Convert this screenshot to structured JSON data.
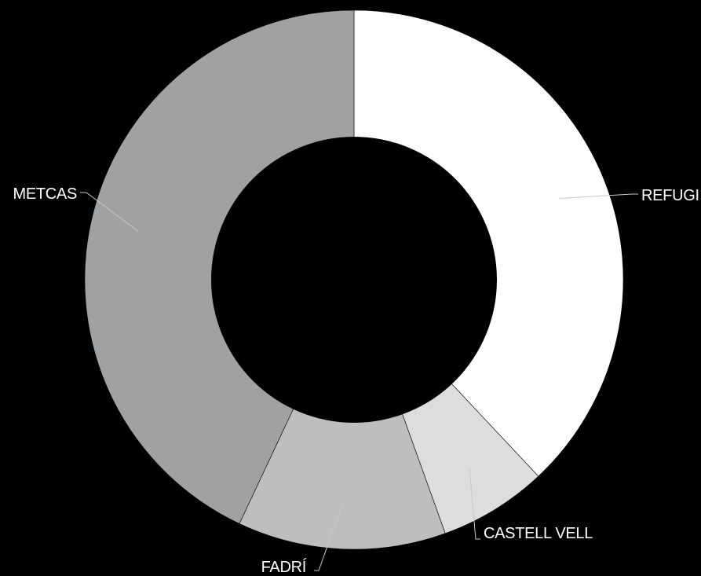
{
  "chart_data": {
    "type": "pie",
    "variant": "donut",
    "start_angle_deg": 0,
    "direction": "clockwise",
    "slices": [
      {
        "label": "REFUGI",
        "value": 38.0,
        "color": "#ffffff"
      },
      {
        "label": "CASTELL VELL",
        "value": 6.5,
        "color": "#dcdddf"
      },
      {
        "label": "FADRÍ",
        "value": 12.5,
        "color": "#bdbebf"
      },
      {
        "label": "METCAS",
        "value": 43.0,
        "color": "#a0a1a3"
      }
    ],
    "legend": "none",
    "labels": "outside-with-leader-lines"
  }
}
